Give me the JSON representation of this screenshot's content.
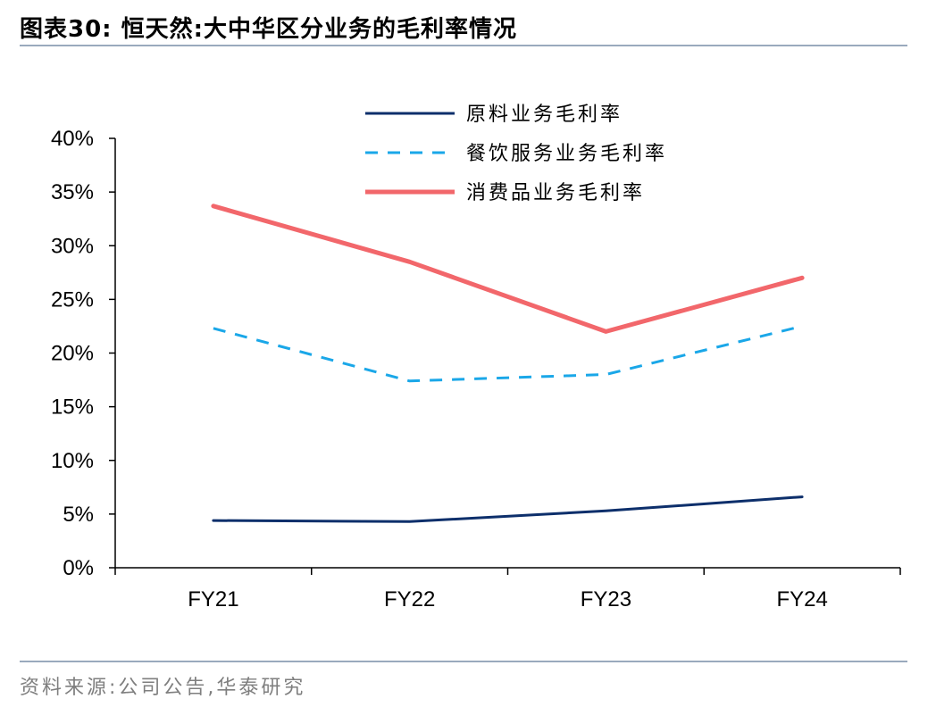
{
  "header": {
    "title": "图表30:  恒天然:大中华区分业务的毛利率情况"
  },
  "footer": {
    "source": "资料来源:公司公告,华泰研究"
  },
  "chart_data": {
    "type": "line",
    "categories": [
      "FY21",
      "FY22",
      "FY23",
      "FY24"
    ],
    "y_ticks": [
      "0%",
      "5%",
      "10%",
      "15%",
      "20%",
      "25%",
      "30%",
      "35%",
      "40%"
    ],
    "ylim": [
      0,
      40
    ],
    "y_unit": "%",
    "legend_position": "top-center",
    "grid": false,
    "series": [
      {
        "name": "原料业务毛利率",
        "values": [
          4.4,
          4.3,
          5.3,
          6.6
        ],
        "color": "#0d2f6b",
        "dash": "solid"
      },
      {
        "name": "餐饮服务业务毛利率",
        "values": [
          22.3,
          17.4,
          18.0,
          22.5
        ],
        "color": "#1aa7e8",
        "dash": "dashed"
      },
      {
        "name": "消费品业务毛利率",
        "values": [
          33.7,
          28.5,
          22.0,
          27.0
        ],
        "color": "#f2676b",
        "dash": "solid"
      }
    ]
  }
}
